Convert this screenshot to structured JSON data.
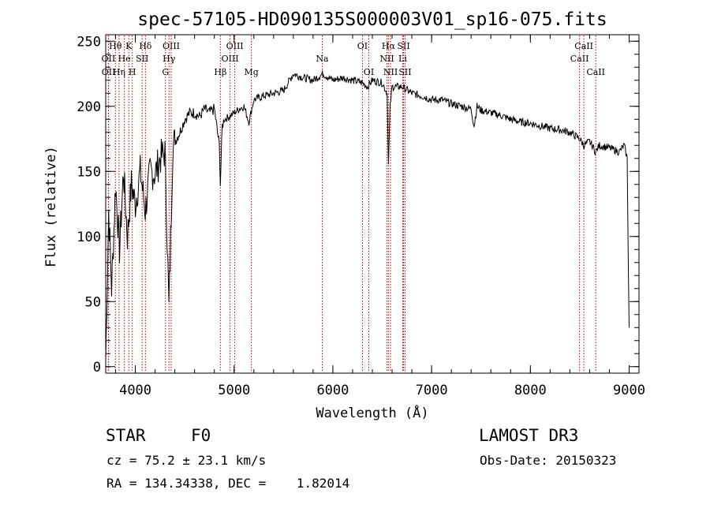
{
  "chart_data": {
    "type": "line",
    "title": "spec-57105-HD090135S000003V01_sp16-075.fits",
    "xlabel": "Wavelength (Å)",
    "ylabel": "Flux (relative)",
    "xlim": [
      3700,
      9100
    ],
    "ylim": [
      -5,
      255
    ],
    "xticks": [
      4000,
      5000,
      6000,
      7000,
      8000,
      9000
    ],
    "yticks": [
      0,
      50,
      100,
      150,
      200,
      250
    ],
    "series": [
      {
        "name": "flux",
        "x": [
          3700,
          3730,
          3760,
          3800,
          3840,
          3880,
          3920,
          3960,
          4000,
          4050,
          4101,
          4150,
          4200,
          4250,
          4300,
          4340,
          4380,
          4450,
          4500,
          4550,
          4600,
          4650,
          4700,
          4750,
          4800,
          4850,
          4861,
          4880,
          4900,
          4950,
          5000,
          5050,
          5100,
          5150,
          5200,
          5300,
          5400,
          5500,
          5600,
          5700,
          5800,
          5900,
          6000,
          6100,
          6200,
          6300,
          6350,
          6400,
          6500,
          6550,
          6563,
          6580,
          6600,
          6700,
          6800,
          6900,
          7000,
          7100,
          7200,
          7300,
          7400,
          7430,
          7460,
          7500,
          7600,
          7700,
          7800,
          7900,
          8000,
          8100,
          8200,
          8300,
          8400,
          8500,
          8542,
          8600,
          8662,
          8700,
          8800,
          8900,
          8950,
          8980,
          9000
        ],
        "y": [
          5,
          120,
          60,
          140,
          90,
          150,
          100,
          140,
          125,
          150,
          120,
          150,
          148,
          160,
          165,
          45,
          170,
          180,
          190,
          195,
          195,
          192,
          198,
          195,
          198,
          170,
          140,
          185,
          190,
          192,
          195,
          198,
          200,
          188,
          205,
          208,
          210,
          212,
          225,
          222,
          220,
          225,
          220,
          222,
          220,
          218,
          215,
          220,
          218,
          210,
          155,
          200,
          215,
          215,
          210,
          208,
          205,
          205,
          202,
          200,
          198,
          185,
          200,
          197,
          195,
          193,
          190,
          188,
          187,
          185,
          183,
          182,
          180,
          175,
          170,
          173,
          165,
          170,
          168,
          165,
          170,
          160,
          30
        ]
      }
    ],
    "lines": [
      {
        "label": "Hθ",
        "wavelength": 3798,
        "row": 1
      },
      {
        "label": "OII",
        "wavelength": 3727,
        "row": 2
      },
      {
        "label": "OII",
        "wavelength": 3729,
        "row": 3
      },
      {
        "label": "He",
        "wavelength": 3889,
        "row": 2
      },
      {
        "label": "Hη",
        "wavelength": 3835,
        "row": 3
      },
      {
        "label": "K",
        "wavelength": 3934,
        "row": 1
      },
      {
        "label": "SII",
        "wavelength": 4069,
        "row": 2
      },
      {
        "label": "H",
        "wavelength": 3969,
        "row": 3
      },
      {
        "label": "Hδ",
        "wavelength": 4102,
        "row": 1
      },
      {
        "label": "OIII",
        "wavelength": 4363,
        "row": 1
      },
      {
        "label": "Hγ",
        "wavelength": 4341,
        "row": 2
      },
      {
        "label": "G",
        "wavelength": 4305,
        "row": 3
      },
      {
        "label": "Hβ",
        "wavelength": 4861,
        "row": 3
      },
      {
        "label": "OIII",
        "wavelength": 5007,
        "row": 1
      },
      {
        "label": "OIII",
        "wavelength": 4959,
        "row": 2
      },
      {
        "label": "Mg",
        "wavelength": 5175,
        "row": 3
      },
      {
        "label": "Na",
        "wavelength": 5893,
        "row": 2
      },
      {
        "label": "OI",
        "wavelength": 6300,
        "row": 1
      },
      {
        "label": "OI",
        "wavelength": 6364,
        "row": 3
      },
      {
        "label": "Hα",
        "wavelength": 6563,
        "row": 1
      },
      {
        "label": "NII",
        "wavelength": 6548,
        "row": 2
      },
      {
        "label": "NII",
        "wavelength": 6584,
        "row": 3
      },
      {
        "label": "SII",
        "wavelength": 6716,
        "row": 1
      },
      {
        "label": "Li",
        "wavelength": 6707,
        "row": 2
      },
      {
        "label": "SII",
        "wavelength": 6731,
        "row": 3
      },
      {
        "label": "CaII",
        "wavelength": 8542,
        "row": 1
      },
      {
        "label": "CaII",
        "wavelength": 8498,
        "row": 2
      },
      {
        "label": "CaII",
        "wavelength": 8662,
        "row": 3
      }
    ]
  },
  "info": {
    "class": "STAR",
    "subclass": "F0",
    "cz": "cz = 75.2 ± 23.1 km/s",
    "coords": "RA = 134.34338, DEC =    1.82014",
    "survey": "LAMOST DR3",
    "obs_date": "Obs-Date: 20150323"
  }
}
